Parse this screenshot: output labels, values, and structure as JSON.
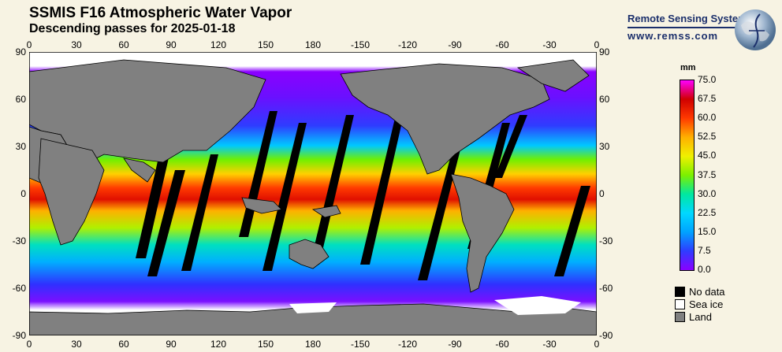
{
  "title": "SSMIS F16 Atmospheric Water Vapor",
  "subtitle": "Descending passes for 2025-01-18",
  "logo": {
    "name": "Remote Sensing Systems",
    "url": "www.remss.com"
  },
  "map": {
    "lon_labels": [
      "0",
      "30",
      "60",
      "90",
      "120",
      "150",
      "180",
      "-150",
      "-120",
      "-90",
      "-60",
      "-30",
      "0"
    ],
    "lat_labels": [
      "90",
      "60",
      "30",
      "0",
      "-30",
      "-60",
      "-90"
    ]
  },
  "colorbar": {
    "unit": "mm",
    "labels": [
      "75.0",
      "67.5",
      "60.0",
      "52.5",
      "45.0",
      "37.5",
      "30.0",
      "22.5",
      "15.0",
      "7.5",
      "0.0"
    ],
    "min": 0.0,
    "max": 75.0,
    "colors": [
      "#8a00ff",
      "#2f3cff",
      "#00a2ff",
      "#00d8ff",
      "#00e8a0",
      "#7cf000",
      "#f0f000",
      "#ffb000",
      "#ff3a00",
      "#d00000",
      "#ff00ff"
    ]
  },
  "legend": [
    {
      "label": "No data",
      "color": "#000000"
    },
    {
      "label": "Sea ice",
      "color": "#ffffff"
    },
    {
      "label": "Land",
      "color": "#808080"
    }
  ]
}
